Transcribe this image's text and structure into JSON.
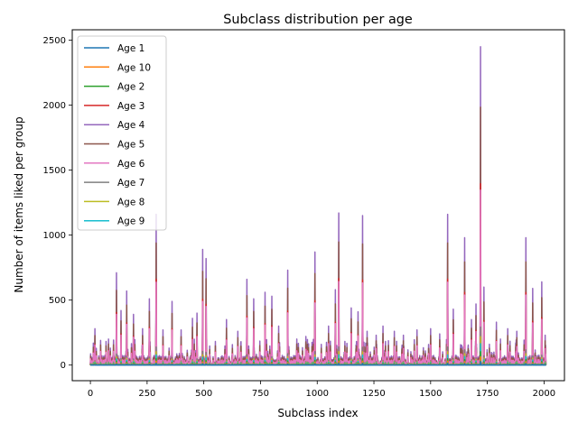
{
  "chart_data": {
    "type": "line",
    "title": "Subclass distribution per age",
    "xlabel": "Subclass index",
    "ylabel": "Number of items liked per group",
    "xlim": [
      -80,
      2090
    ],
    "ylim": [
      -120,
      2580
    ],
    "xticks": [
      0,
      250,
      500,
      750,
      1000,
      1250,
      1500,
      1750,
      2000
    ],
    "yticks": [
      0,
      500,
      1000,
      1500,
      2000,
      2500
    ],
    "grid": false,
    "legend_position": "upper-left",
    "stacked": true,
    "n_points": 2010,
    "series": [
      {
        "name": "Age 1",
        "color": "#1f77b4",
        "scale": 0.012
      },
      {
        "name": "Age 10",
        "color": "#ff7f0e",
        "scale": 0.014
      },
      {
        "name": "Age 2",
        "color": "#2ca02c",
        "scale": 0.016
      },
      {
        "name": "Age 3",
        "color": "#d62728",
        "scale": 0.02
      },
      {
        "name": "Age 4",
        "color": "#9467bd",
        "scale": 0.19
      },
      {
        "name": "Age 5",
        "color": "#8c564b",
        "scale": 0.24
      },
      {
        "name": "Age 6",
        "color": "#e377c2",
        "scale": 0.43
      },
      {
        "name": "Age 7",
        "color": "#7f7f7f",
        "scale": 0.03
      },
      {
        "name": "Age 8",
        "color": "#bcbd22",
        "scale": 0.022
      },
      {
        "name": "Age 9",
        "color": "#17becf",
        "scale": 0.025
      }
    ],
    "spikes": [
      [
        20,
        280
      ],
      [
        45,
        190
      ],
      [
        80,
        200
      ],
      [
        115,
        710
      ],
      [
        135,
        420
      ],
      [
        160,
        570
      ],
      [
        190,
        390
      ],
      [
        230,
        280
      ],
      [
        260,
        510
      ],
      [
        290,
        1160
      ],
      [
        320,
        270
      ],
      [
        360,
        490
      ],
      [
        400,
        270
      ],
      [
        450,
        360
      ],
      [
        470,
        400
      ],
      [
        495,
        890
      ],
      [
        510,
        820
      ],
      [
        600,
        350
      ],
      [
        650,
        260
      ],
      [
        690,
        660
      ],
      [
        720,
        510
      ],
      [
        770,
        560
      ],
      [
        800,
        530
      ],
      [
        830,
        300
      ],
      [
        870,
        730
      ],
      [
        910,
        200
      ],
      [
        950,
        220
      ],
      [
        990,
        870
      ],
      [
        1050,
        300
      ],
      [
        1080,
        580
      ],
      [
        1095,
        1170
      ],
      [
        1150,
        440
      ],
      [
        1180,
        410
      ],
      [
        1200,
        1150
      ],
      [
        1220,
        260
      ],
      [
        1260,
        230
      ],
      [
        1290,
        300
      ],
      [
        1340,
        260
      ],
      [
        1380,
        230
      ],
      [
        1440,
        270
      ],
      [
        1500,
        280
      ],
      [
        1540,
        240
      ],
      [
        1575,
        1160
      ],
      [
        1600,
        430
      ],
      [
        1650,
        980
      ],
      [
        1680,
        350
      ],
      [
        1700,
        470
      ],
      [
        1720,
        2450
      ],
      [
        1735,
        600
      ],
      [
        1790,
        330
      ],
      [
        1840,
        280
      ],
      [
        1880,
        260
      ],
      [
        1920,
        980
      ],
      [
        1950,
        590
      ],
      [
        1990,
        640
      ],
      [
        2005,
        230
      ]
    ]
  }
}
